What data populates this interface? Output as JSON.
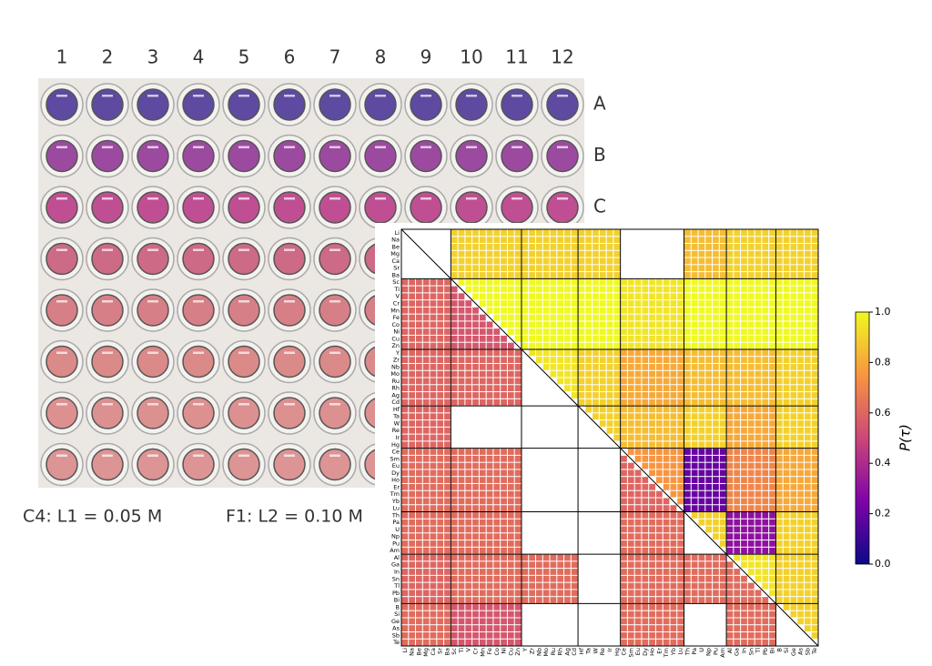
{
  "plate": {
    "columns": [
      "1",
      "2",
      "3",
      "4",
      "5",
      "6",
      "7",
      "8",
      "9",
      "10",
      "11",
      "12"
    ],
    "rows": [
      "A",
      "B",
      "C"
    ],
    "captions": [
      "C4: L1 = 0.05 M",
      "F1: L2 = 0.10 M"
    ]
  },
  "chart_data": {
    "type": "heatmap",
    "labels": [
      "Li",
      "Na",
      "Be",
      "Mg",
      "Ca",
      "Sr",
      "Ba",
      "Sc",
      "Ti",
      "V",
      "Cr",
      "Mn",
      "Fe",
      "Co",
      "Ni",
      "Cu",
      "Zn",
      "Y",
      "Zr",
      "Nb",
      "Mo",
      "Ru",
      "Rh",
      "Ag",
      "Cd",
      "Hf",
      "Ta",
      "W",
      "Re",
      "Ir",
      "Hg",
      "Ce",
      "Sm",
      "Eu",
      "Dy",
      "Ho",
      "Er",
      "Tm",
      "Yb",
      "Lu",
      "Th",
      "Pa",
      "U",
      "Np",
      "Pu",
      "Am",
      "Al",
      "Ga",
      "In",
      "Sn",
      "Tl",
      "Pb",
      "Bi",
      "B",
      "Si",
      "Ge",
      "As",
      "Sb",
      "Te"
    ],
    "upper_block_values": [
      [
        null,
        0.9,
        0.9,
        0.9,
        null,
        0.85,
        0.9,
        0.9
      ],
      [
        null,
        1.0,
        1.0,
        1.0,
        0.95,
        1.0,
        1.0,
        1.0
      ],
      [
        null,
        null,
        0.95,
        0.9,
        0.8,
        0.85,
        0.85,
        0.9
      ],
      [
        null,
        null,
        null,
        0.9,
        0.85,
        0.9,
        0.8,
        0.9
      ],
      [
        null,
        null,
        null,
        null,
        0.75,
        0.2,
        0.7,
        0.8
      ],
      [
        null,
        null,
        null,
        null,
        null,
        0.9,
        0.3,
        0.9
      ],
      [
        null,
        null,
        null,
        null,
        null,
        null,
        0.95,
        0.9
      ],
      [
        null,
        null,
        null,
        null,
        null,
        null,
        null,
        0.9
      ]
    ],
    "lower_block_values": [
      [
        null,
        null,
        null,
        null,
        null,
        null,
        null,
        null
      ],
      [
        0.6,
        0.55,
        null,
        null,
        null,
        null,
        null,
        null
      ],
      [
        0.6,
        0.6,
        null,
        null,
        null,
        null,
        null,
        null
      ],
      [
        0.6,
        null,
        null,
        null,
        null,
        null,
        null,
        null
      ],
      [
        0.62,
        0.62,
        null,
        null,
        0.6,
        null,
        null,
        null
      ],
      [
        0.62,
        0.62,
        null,
        null,
        0.62,
        null,
        null,
        null
      ],
      [
        0.6,
        0.62,
        0.62,
        null,
        0.62,
        0.62,
        0.62,
        null
      ],
      [
        0.62,
        0.55,
        null,
        null,
        0.62,
        null,
        0.62,
        null
      ]
    ],
    "colorbar_label": "P(τ)",
    "clim": [
      0,
      1
    ],
    "cticks": [
      {
        "value": 0,
        "label": "0.0"
      },
      {
        "value": 0.2,
        "label": "0.2"
      },
      {
        "value": 0.4,
        "label": "0.4"
      },
      {
        "value": 0.6,
        "label": "0.6"
      },
      {
        "value": 0.8,
        "label": "0.8"
      },
      {
        "value": 1,
        "label": "1.0"
      }
    ],
    "colormap": [
      "#0d0887",
      "#7e03a8",
      "#cc4778",
      "#f89540",
      "#f0f921"
    ]
  }
}
